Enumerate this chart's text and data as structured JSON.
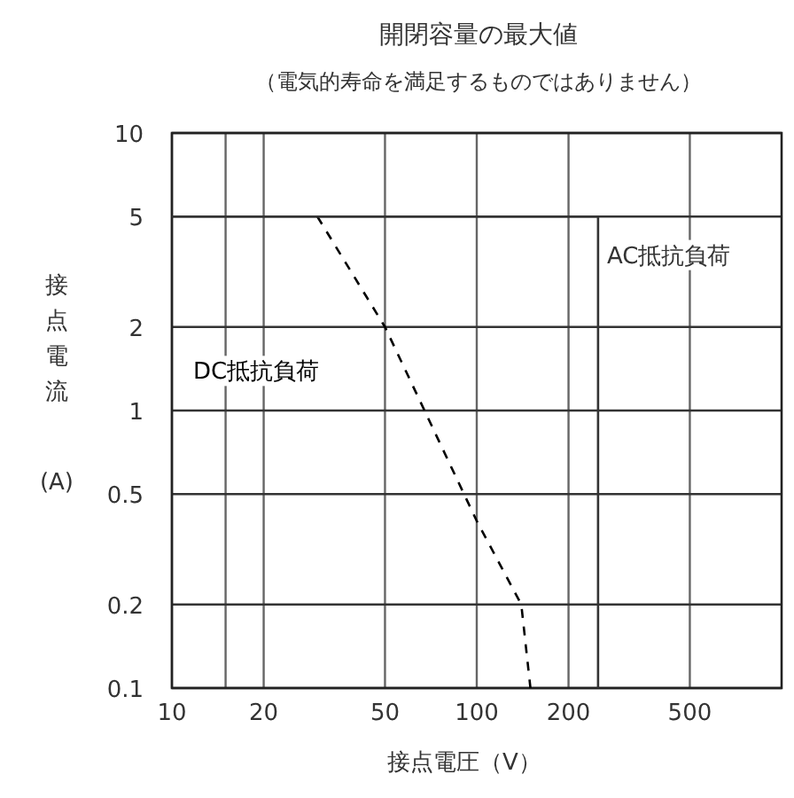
{
  "chart_data": {
    "type": "line",
    "title": "開閉容量の最大値",
    "subtitle": "（電気的寿命を満足するものではありません）",
    "xlabel": "接点電圧（V）",
    "ylabel": "接点電流",
    "annotations": [
      "(A)"
    ],
    "log": "xy",
    "xlim": [
      10,
      1000
    ],
    "ylim": [
      0.1,
      10
    ],
    "xticks": [
      10,
      {
        "value": 15,
        "label": null
      },
      20,
      50,
      100,
      200,
      500
    ],
    "yticks": [
      0.1,
      0.2,
      0.5,
      1,
      2,
      5,
      10
    ],
    "grid": true,
    "marker": "none",
    "series": [
      {
        "name": "DC抵抗負荷",
        "color": "#000000",
        "line_style": "dashed",
        "x": [
          30,
          50,
          100,
          140,
          150
        ],
        "values": [
          5,
          2,
          0.4,
          0.2,
          0.1
        ]
      },
      {
        "name": "AC抵抗負荷",
        "color": "#333333",
        "line_style": "solid",
        "x": [
          10,
          250,
          250
        ],
        "values": [
          5,
          5,
          0.1
        ]
      }
    ]
  }
}
